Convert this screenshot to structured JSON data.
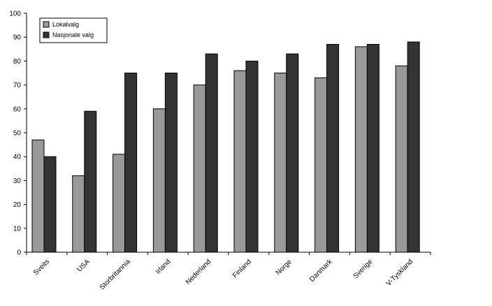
{
  "chart_data": {
    "type": "bar",
    "title": "",
    "xlabel": "",
    "ylabel": "",
    "ylim": [
      0,
      100
    ],
    "yticks": [
      0,
      10,
      20,
      30,
      40,
      50,
      60,
      70,
      80,
      90,
      100
    ],
    "grid": false,
    "legend_position": "top-left",
    "categories": [
      "Sveits",
      "USA",
      "Storbritannia",
      "Irland",
      "Nederland",
      "Finland",
      "Norge",
      "Danmark",
      "Sverige",
      "V-Tyskland"
    ],
    "series": [
      {
        "name": "Lokalvalg",
        "color": "#999999",
        "values": [
          47,
          32,
          41,
          60,
          70,
          76,
          75,
          73,
          86,
          78
        ]
      },
      {
        "name": "Nasjonale valg",
        "color": "#333333",
        "values": [
          40,
          59,
          75,
          75,
          83,
          80,
          83,
          87,
          87,
          88
        ]
      }
    ]
  }
}
